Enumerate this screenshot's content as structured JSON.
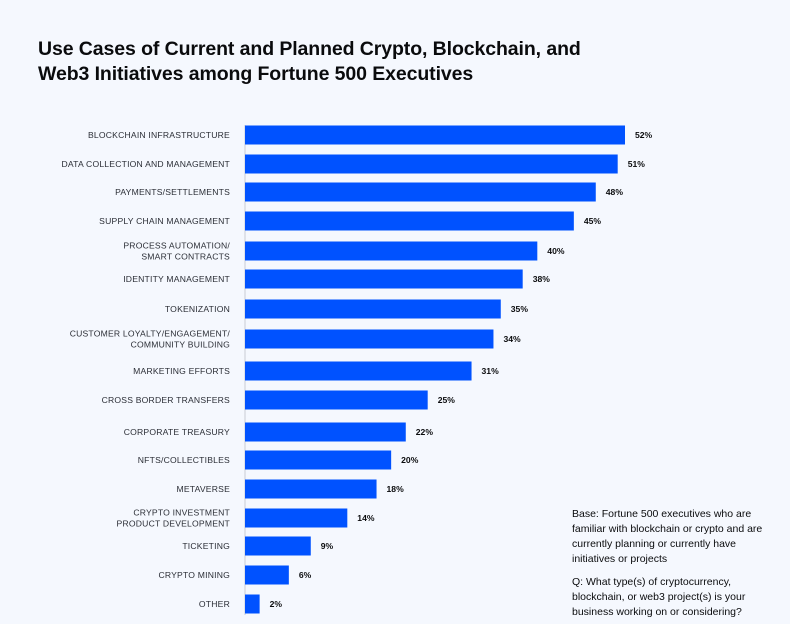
{
  "chart_data": {
    "type": "bar",
    "orientation": "horizontal",
    "title": "Use Cases of Current and Planned Crypto, Blockchain, and Web3 Initiatives among Fortune 500 Executives",
    "categories": [
      "BLOCKCHAIN INFRASTRUCTURE",
      "DATA COLLECTION AND MANAGEMENT",
      "PAYMENTS/SETTLEMENTS",
      "SUPPLY CHAIN MANAGEMENT",
      "PROCESS AUTOMATION/\nSMART CONTRACTS",
      "IDENTITY MANAGEMENT",
      "TOKENIZATION",
      "CUSTOMER LOYALTY/ENGAGEMENT/\nCOMMUNITY BUILDING",
      "MARKETING EFFORTS",
      "CROSS BORDER TRANSFERS",
      "CORPORATE TREASURY",
      "NFTS/COLLECTIBLES",
      "METAVERSE",
      "CRYPTO INVESTMENT\nPRODUCT DEVELOPMENT",
      "TICKETING",
      "CRYPTO MINING",
      "OTHER"
    ],
    "values": [
      52,
      51,
      48,
      45,
      40,
      38,
      35,
      34,
      31,
      25,
      22,
      20,
      18,
      14,
      9,
      6,
      2
    ],
    "value_labels": [
      "52%",
      "51%",
      "48%",
      "45%",
      "40%",
      "38%",
      "35%",
      "34%",
      "31%",
      "25%",
      "22%",
      "20%",
      "18%",
      "14%",
      "9%",
      "6%",
      "2%"
    ],
    "unit": "%",
    "xlim": [
      0,
      52
    ],
    "grid": false,
    "bar_color": "#0052ff",
    "axis_color": "#c9ccd4",
    "background": "#f5f8fe"
  },
  "notes": {
    "base": "Base: Fortune 500 executives who are familiar with blockchain or crypto and are currently planning or currently have initiatives or projects",
    "question": "Q: What type(s) of cryptocurrency, blockchain, or web3 project(s) is your business working on or considering?"
  }
}
